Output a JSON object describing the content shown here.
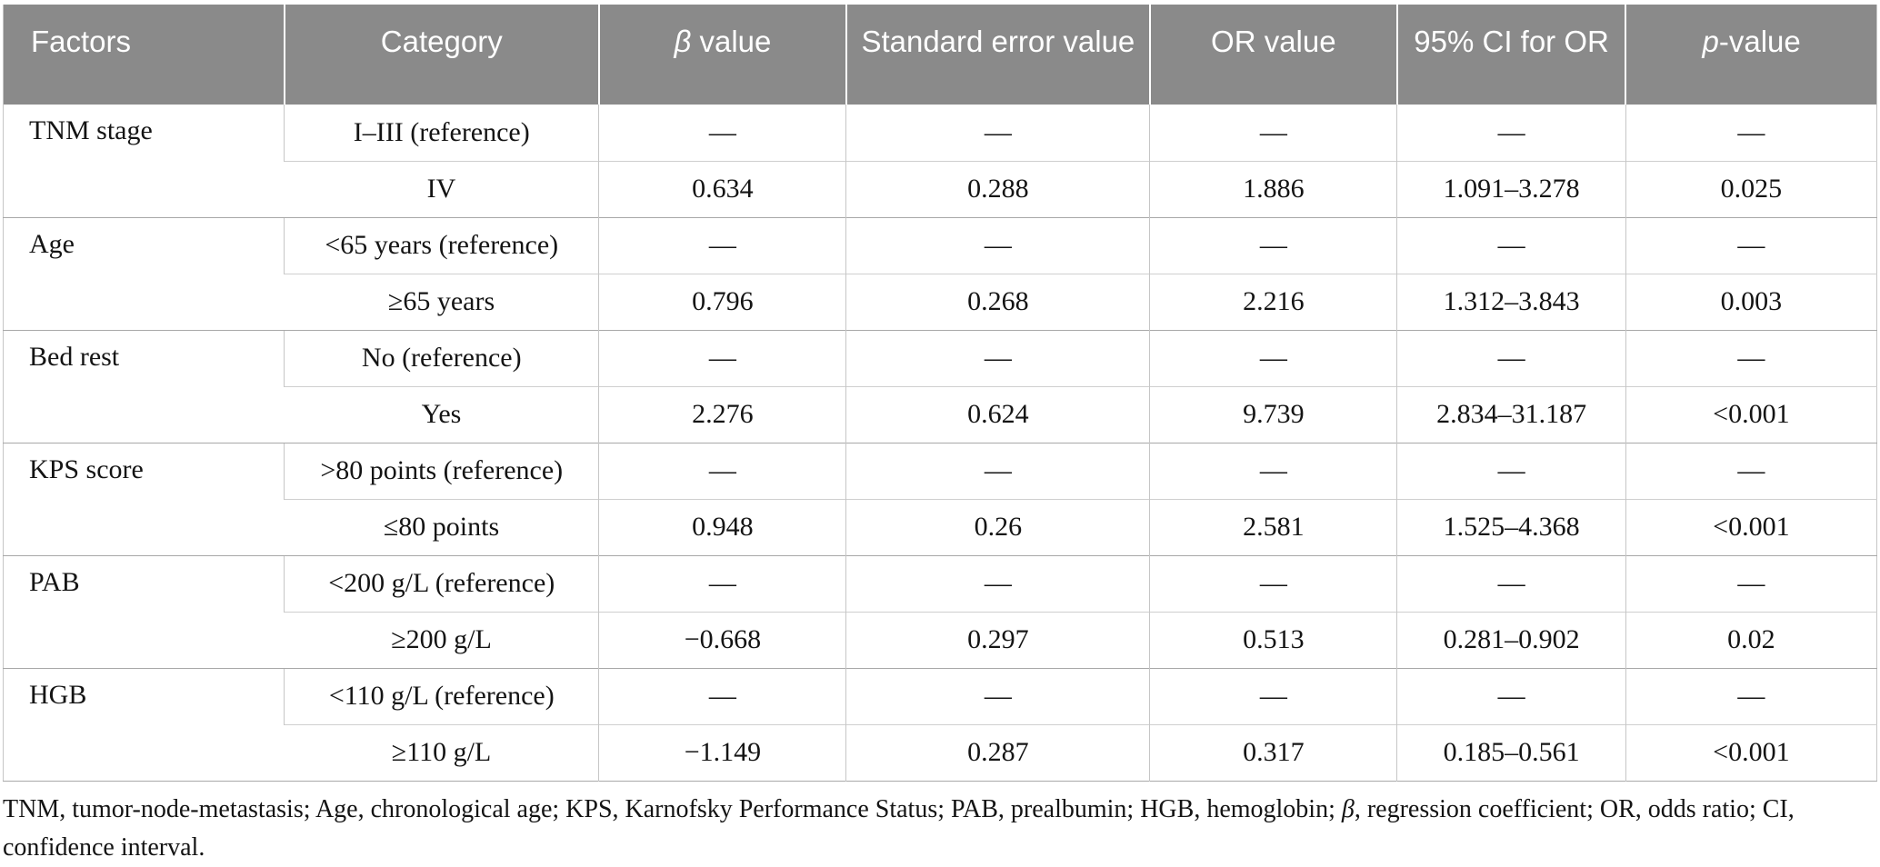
{
  "colors": {
    "header_bg": "#8a8a8a",
    "header_text": "#ffffff",
    "body_text": "#141414",
    "grid_line": "#c6c6c6",
    "group_line": "#a8a8a8"
  },
  "table": {
    "headers": [
      {
        "italic": "",
        "rest": "Factors"
      },
      {
        "italic": "",
        "rest": "Category"
      },
      {
        "italic": "β",
        "rest": " value"
      },
      {
        "italic": "",
        "rest": "Standard error value"
      },
      {
        "italic": "",
        "rest": "OR value"
      },
      {
        "italic": "",
        "rest": "95% CI for OR"
      },
      {
        "italic": "p",
        "rest": "-value"
      }
    ],
    "groups": [
      {
        "factor": "TNM stage",
        "rows": [
          [
            "I–III (reference)",
            "—",
            "—",
            "—",
            "—",
            "—"
          ],
          [
            "IV",
            "0.634",
            "0.288",
            "1.886",
            "1.091–3.278",
            "0.025"
          ]
        ]
      },
      {
        "factor": "Age",
        "rows": [
          [
            "<65 years (reference)",
            "—",
            "—",
            "—",
            "—",
            "—"
          ],
          [
            "≥65 years",
            "0.796",
            "0.268",
            "2.216",
            "1.312–3.843",
            "0.003"
          ]
        ]
      },
      {
        "factor": "Bed rest",
        "rows": [
          [
            "No (reference)",
            "—",
            "—",
            "—",
            "—",
            "—"
          ],
          [
            "Yes",
            "2.276",
            "0.624",
            "9.739",
            "2.834–31.187",
            "<0.001"
          ]
        ]
      },
      {
        "factor": "KPS score",
        "rows": [
          [
            ">80 points (reference)",
            "—",
            "—",
            "—",
            "—",
            "—"
          ],
          [
            "≤80 points",
            "0.948",
            "0.26",
            "2.581",
            "1.525–4.368",
            "<0.001"
          ]
        ]
      },
      {
        "factor": "PAB",
        "rows": [
          [
            "<200 g/L (reference)",
            "—",
            "—",
            "—",
            "—",
            "—"
          ],
          [
            "≥200 g/L",
            "−0.668",
            "0.297",
            "0.513",
            "0.281–0.902",
            "0.02"
          ]
        ]
      },
      {
        "factor": "HGB",
        "rows": [
          [
            "<110 g/L (reference)",
            "—",
            "—",
            "—",
            "—",
            "—"
          ],
          [
            "≥110 g/L",
            "−1.149",
            "0.287",
            "0.317",
            "0.185–0.561",
            "<0.001"
          ]
        ]
      }
    ]
  },
  "footnote": {
    "part1": "TNM, tumor-node-metastasis; Age, chronological age; KPS, Karnofsky Performance Status; PAB, prealbumin; HGB, hemoglobin; ",
    "italic": "β",
    "part2": ", regression coefficient; OR, odds ratio; CI, confidence interval."
  }
}
